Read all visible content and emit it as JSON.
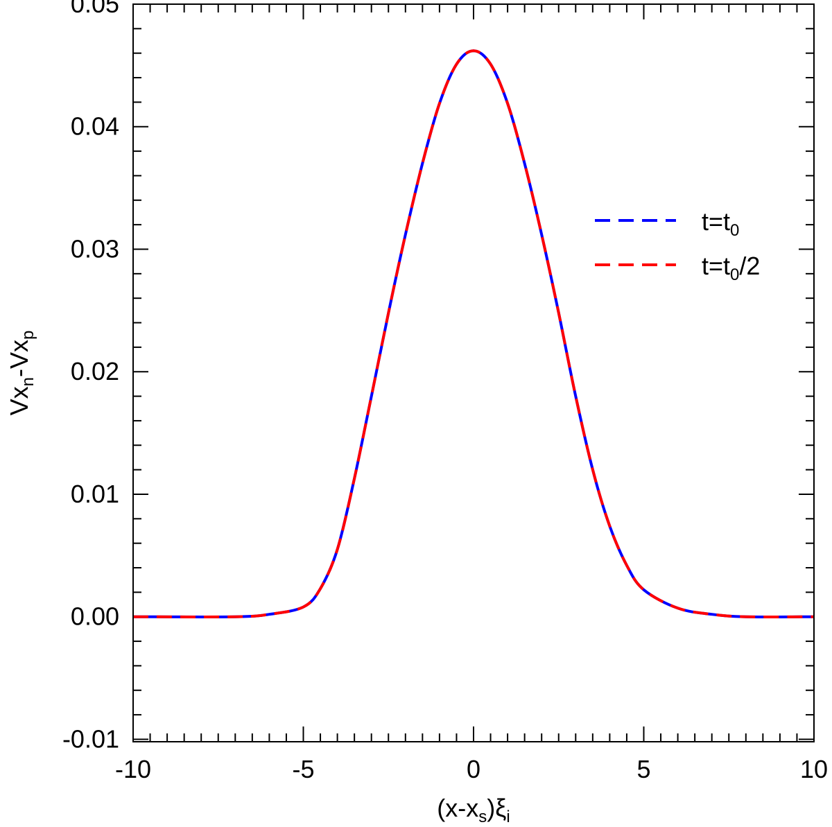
{
  "chart_data": {
    "type": "line",
    "xlabel": {
      "base": "(x-x",
      "sub": "s",
      "mid": ")ξ",
      "sub2": "i"
    },
    "ylabel": {
      "base": "Vx",
      "sub": "n",
      "mid": "-Vx",
      "sub2": "p"
    },
    "xlim": [
      -10,
      10
    ],
    "ylim": [
      -0.0102,
      0.05
    ],
    "x_ticks": [
      -10,
      -5,
      0,
      5,
      10
    ],
    "x_tick_labels": [
      "-10",
      "-5",
      "0",
      "5",
      "10"
    ],
    "y_ticks": [
      -0.01,
      0.0,
      0.01,
      0.02,
      0.03,
      0.04,
      0.05
    ],
    "y_tick_labels": [
      "-0.01",
      "0.00",
      "0.01",
      "0.02",
      "0.03",
      "0.04",
      "0.05"
    ],
    "grid": false,
    "legend_position": "right",
    "series": [
      {
        "name": "t=t0",
        "label": {
          "base": "t=t",
          "sub": "0",
          "tail": ""
        },
        "color": "#0000ff",
        "dash": "dashed",
        "x": [
          -10,
          -7,
          -6,
          -5,
          -4.5,
          -4,
          -3.5,
          -3,
          -2.5,
          -2,
          -1.5,
          -1,
          -0.5,
          0,
          0.5,
          1,
          1.5,
          2,
          2.5,
          3,
          3.5,
          4,
          4.5,
          5,
          6,
          7,
          8,
          10
        ],
        "y": [
          0.0,
          0.0,
          0.0002,
          0.0008,
          0.0023,
          0.0055,
          0.0113,
          0.018,
          0.0248,
          0.0312,
          0.037,
          0.0419,
          0.0451,
          0.0462,
          0.0451,
          0.0419,
          0.037,
          0.0312,
          0.0248,
          0.018,
          0.012,
          0.0074,
          0.0042,
          0.0022,
          0.0007,
          0.0002,
          0.0,
          0.0
        ]
      },
      {
        "name": "t=t0/2",
        "label": {
          "base": "t=t",
          "sub": "0",
          "tail": "/2"
        },
        "color": "#ff0000",
        "dash": "dashed",
        "x": [
          -10,
          -7,
          -6,
          -5,
          -4.5,
          -4,
          -3.5,
          -3,
          -2.5,
          -2,
          -1.5,
          -1,
          -0.5,
          0,
          0.5,
          1,
          1.5,
          2,
          2.5,
          3,
          3.5,
          4,
          4.5,
          5,
          6,
          7,
          8,
          10
        ],
        "y": [
          0.0,
          0.0,
          0.0002,
          0.0008,
          0.0023,
          0.0055,
          0.0113,
          0.018,
          0.0248,
          0.0312,
          0.037,
          0.0419,
          0.0451,
          0.0462,
          0.0451,
          0.0419,
          0.037,
          0.0312,
          0.0248,
          0.018,
          0.012,
          0.0074,
          0.0042,
          0.0022,
          0.0007,
          0.0002,
          0.0,
          0.0
        ]
      }
    ]
  }
}
